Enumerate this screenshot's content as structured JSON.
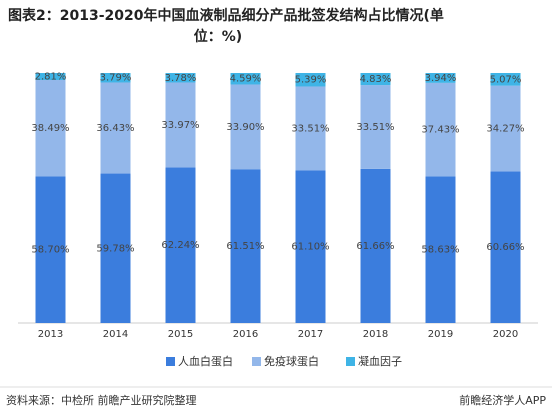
{
  "chart_data": {
    "type": "stacked-bar",
    "title_lines": [
      "图表2：2013-2020年中国血液制品细分产品批签发结构占比情况(单",
      "位：%)"
    ],
    "categories": [
      "2013",
      "2014",
      "2015",
      "2016",
      "2017",
      "2018",
      "2019",
      "2020"
    ],
    "series": [
      {
        "name": "人血白蛋白",
        "color": "#3b7ddd",
        "values": [
          58.7,
          59.78,
          62.24,
          61.51,
          61.1,
          61.66,
          58.63,
          60.66
        ],
        "value_labels": [
          "58.70%",
          "59.78%",
          "62.24%",
          "61.51%",
          "61.10%",
          "61.66%",
          "58.63%",
          "60.66%"
        ]
      },
      {
        "name": "免疫球蛋白",
        "color": "#93b7ea",
        "values": [
          38.49,
          36.43,
          33.97,
          33.9,
          33.51,
          33.51,
          37.43,
          34.27
        ],
        "value_labels": [
          "38.49%",
          "36.43%",
          "33.97%",
          "33.90%",
          "33.51%",
          "33.51%",
          "37.43%",
          "34.27%"
        ]
      },
      {
        "name": "凝血因子",
        "color": "#3fb4e6",
        "values": [
          2.81,
          3.79,
          3.78,
          4.59,
          5.39,
          4.83,
          3.94,
          5.07
        ],
        "value_labels": [
          "2.81%",
          "3.79%",
          "3.78%",
          "4.59%",
          "5.39%",
          "4.83%",
          "3.94%",
          "5.07%"
        ]
      }
    ],
    "ylim": [
      0,
      100
    ],
    "source": "资料来源：中检所 前瞻产业研究院整理",
    "brand": "前瞻经济学人APP"
  }
}
